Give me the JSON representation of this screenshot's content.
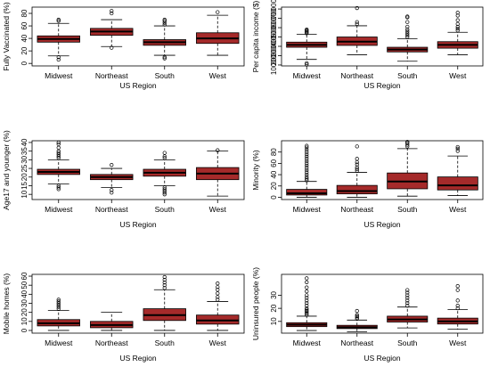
{
  "colors": {
    "box_fill": "#a52a2a",
    "stroke": "#000000",
    "outlier": "#000000"
  },
  "chart_data": [
    {
      "type": "boxplot",
      "xlabel": "US Region",
      "ylabel": "Fully Vaccinated (%)",
      "categories": [
        "Midwest",
        "Northeast",
        "South",
        "West"
      ],
      "yticks": [
        0,
        20,
        40,
        60,
        80
      ],
      "ylim": [
        -4,
        90
      ],
      "boxes": [
        {
          "min": 12,
          "q1": 34,
          "median": 39,
          "q3": 44,
          "max": 64,
          "outliers": [
            6,
            10,
            68,
            70
          ]
        },
        {
          "min": 27,
          "q1": 45,
          "median": 51,
          "q3": 56,
          "max": 70,
          "outliers": [
            25,
            80,
            84
          ]
        },
        {
          "min": 13,
          "q1": 29,
          "median": 34,
          "q3": 38,
          "max": 60,
          "outliers": [
            8,
            10,
            62,
            65,
            68,
            70
          ]
        },
        {
          "min": 13,
          "q1": 32,
          "median": 40,
          "q3": 49,
          "max": 77,
          "outliers": [
            82
          ]
        }
      ]
    },
    {
      "type": "boxplot",
      "xlabel": "US Region",
      "ylabel": "Per capita income ($)",
      "categories": [
        "Midwest",
        "Northeast",
        "South",
        "West"
      ],
      "yticks": [
        10000,
        20000,
        30000,
        40000,
        50000,
        60000,
        70000
      ],
      "ylim": [
        9000,
        72000
      ],
      "boxes": [
        {
          "min": 16000,
          "q1": 29000,
          "median": 31500,
          "q3": 34500,
          "max": 43000,
          "outliers": [
            10500,
            12000,
            44000,
            45000,
            46000,
            47000,
            48000
          ]
        },
        {
          "min": 21000,
          "q1": 31000,
          "median": 35000,
          "q3": 40000,
          "max": 52000,
          "outliers": [
            54000,
            56000,
            71000
          ]
        },
        {
          "min": 14000,
          "q1": 24000,
          "median": 26500,
          "q3": 29000,
          "max": 38000,
          "outliers": [
            40000,
            42000,
            44000,
            46000,
            48000,
            51000,
            56000,
            61000,
            62000
          ]
        },
        {
          "min": 21000,
          "q1": 28000,
          "median": 31500,
          "q3": 35000,
          "max": 45000,
          "outliers": [
            47000,
            49000,
            51000,
            54000,
            58000,
            63000,
            66000
          ]
        }
      ]
    },
    {
      "type": "boxplot",
      "xlabel": "US Region",
      "ylabel": "Age17 and younger (%)",
      "categories": [
        "Midwest",
        "Northeast",
        "South",
        "West"
      ],
      "yticks": [
        10,
        15,
        20,
        25,
        30,
        35,
        40
      ],
      "ylim": [
        7,
        41
      ],
      "boxes": [
        {
          "min": 16,
          "q1": 21.5,
          "median": 23,
          "q3": 24.5,
          "max": 30,
          "outliers": [
            13,
            14,
            15,
            31,
            32,
            33,
            34,
            35,
            37,
            39,
            40
          ]
        },
        {
          "min": 14,
          "q1": 18.5,
          "median": 20,
          "q3": 21.5,
          "max": 25,
          "outliers": [
            11,
            12.5,
            27
          ]
        },
        {
          "min": 15,
          "q1": 20.5,
          "median": 22.5,
          "q3": 24.5,
          "max": 30,
          "outliers": [
            10,
            11,
            12,
            13,
            14,
            31,
            32,
            34
          ]
        },
        {
          "min": 9,
          "q1": 18.5,
          "median": 22,
          "q3": 25.5,
          "max": 35,
          "outliers": [
            35.5
          ]
        }
      ]
    },
    {
      "type": "boxplot",
      "xlabel": "US Region",
      "ylabel": "Minority (%)",
      "categories": [
        "Midwest",
        "Northeast",
        "South",
        "West"
      ],
      "yticks": [
        0,
        20,
        40,
        60,
        80
      ],
      "ylim": [
        -4,
        100
      ],
      "boxes": [
        {
          "min": 0,
          "q1": 4,
          "median": 7,
          "q3": 14,
          "max": 28,
          "outliers": [
            30,
            33,
            36,
            40,
            44,
            48,
            52,
            56,
            60,
            64,
            68,
            72,
            76,
            80,
            84,
            88,
            91
          ]
        },
        {
          "min": 0,
          "q1": 6,
          "median": 11,
          "q3": 21,
          "max": 44,
          "outliers": [
            47,
            50,
            53,
            58,
            62,
            68,
            90
          ]
        },
        {
          "min": 2,
          "q1": 15,
          "median": 28,
          "q3": 43,
          "max": 86,
          "outliers": [
            90,
            93,
            96,
            98
          ]
        },
        {
          "min": 3,
          "q1": 13,
          "median": 21,
          "q3": 36,
          "max": 73,
          "outliers": [
            82,
            86,
            89
          ]
        }
      ]
    },
    {
      "type": "boxplot",
      "xlabel": "US Region",
      "ylabel": "Mobile homes (%)",
      "categories": [
        "Midwest",
        "Northeast",
        "South",
        "West"
      ],
      "yticks": [
        0,
        10,
        20,
        30,
        40,
        50,
        60
      ],
      "ylim": [
        -3,
        62
      ],
      "boxes": [
        {
          "min": 0,
          "q1": 5,
          "median": 8,
          "q3": 12,
          "max": 22,
          "outliers": [
            24,
            26,
            28,
            30,
            32,
            34
          ]
        },
        {
          "min": 0,
          "q1": 3,
          "median": 6,
          "q3": 10,
          "max": 20,
          "outliers": []
        },
        {
          "min": 0,
          "q1": 11,
          "median": 17,
          "q3": 24,
          "max": 45,
          "outliers": [
            47,
            50,
            53,
            56,
            59
          ]
        },
        {
          "min": 0,
          "q1": 7,
          "median": 11,
          "q3": 17,
          "max": 32,
          "outliers": [
            34,
            37,
            41,
            45,
            48,
            52
          ]
        }
      ]
    },
    {
      "type": "boxplot",
      "xlabel": "US Region",
      "ylabel": "Uninsured people (%)",
      "categories": [
        "Midwest",
        "Northeast",
        "South",
        "West"
      ],
      "yticks": [
        10,
        20,
        30
      ],
      "ylim": [
        1,
        46
      ],
      "boxes": [
        {
          "min": 3,
          "q1": 6,
          "median": 7.5,
          "q3": 9,
          "max": 14,
          "outliers": [
            15,
            16,
            17,
            18,
            19,
            20,
            22,
            24,
            26,
            28,
            30,
            33,
            36,
            40,
            43
          ]
        },
        {
          "min": 2,
          "q1": 4.5,
          "median": 5.5,
          "q3": 7,
          "max": 11,
          "outliers": [
            12,
            13,
            14,
            15,
            18
          ]
        },
        {
          "min": 5,
          "q1": 9.5,
          "median": 11.5,
          "q3": 14,
          "max": 21,
          "outliers": [
            22,
            24,
            26,
            28,
            30,
            32,
            34
          ]
        },
        {
          "min": 4,
          "q1": 8,
          "median": 10,
          "q3": 12.5,
          "max": 19,
          "outliers": [
            20,
            22,
            26,
            34,
            37
          ]
        }
      ]
    }
  ]
}
